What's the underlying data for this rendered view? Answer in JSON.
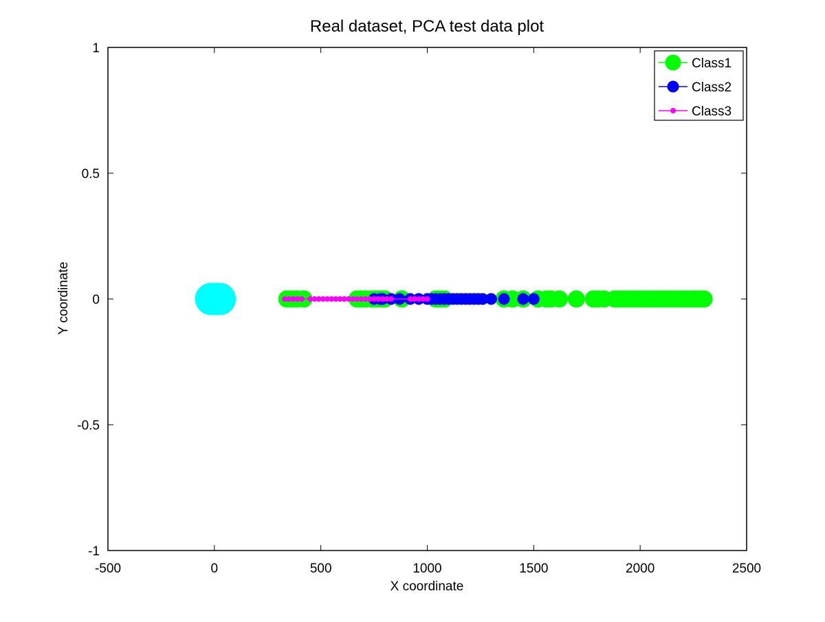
{
  "chart_data": {
    "type": "scatter",
    "title": "Real dataset, PCA test data plot",
    "xlabel": "X coordinate",
    "ylabel": "Y coordinate",
    "xlim": [
      -500,
      2500
    ],
    "ylim": [
      -1,
      1
    ],
    "xticks": [
      -500,
      0,
      500,
      1000,
      1500,
      2000,
      2500
    ],
    "yticks": [
      -1,
      -0.5,
      0,
      0.5,
      1
    ],
    "xtick_labels": [
      "-500",
      "0",
      "500",
      "1000",
      "1500",
      "2000",
      "2500"
    ],
    "ytick_labels": [
      "-1",
      "-0.5",
      "0",
      "0.5",
      "1"
    ],
    "grid": false,
    "legend_position": "top-right",
    "series": [
      {
        "name": "Class1",
        "color": "#00ff00",
        "marker": "large-circle",
        "x": [
          340,
          365,
          390,
          420,
          670,
          690,
          710,
          740,
          760,
          780,
          800,
          880,
          1040,
          1060,
          1080,
          1360,
          1400,
          1450,
          1520,
          1560,
          1580,
          1620,
          1700,
          1780,
          1800,
          1830,
          1880,
          1900,
          1920,
          1940,
          1960,
          1980,
          2000,
          2020,
          2040,
          2060,
          2080,
          2100,
          2120,
          2140,
          2160,
          2180,
          2200,
          2220,
          2240,
          2260,
          2280,
          2300
        ],
        "y": [
          0,
          0,
          0,
          0,
          0,
          0,
          0,
          0,
          0,
          0,
          0,
          0,
          0,
          0,
          0,
          0,
          0,
          0,
          0,
          0,
          0,
          0,
          0,
          0,
          0,
          0,
          0,
          0,
          0,
          0,
          0,
          0,
          0,
          0,
          0,
          0,
          0,
          0,
          0,
          0,
          0,
          0,
          0,
          0,
          0,
          0,
          0,
          0
        ]
      },
      {
        "name": "Class2",
        "color": "#0000ff",
        "marker": "medium-circle",
        "x": [
          750,
          780,
          790,
          830,
          870,
          920,
          960,
          1000,
          1020,
          1040,
          1060,
          1080,
          1100,
          1120,
          1140,
          1160,
          1180,
          1200,
          1220,
          1240,
          1260,
          1300,
          1360,
          1450,
          1500
        ],
        "y": [
          0,
          0,
          0,
          0,
          0,
          0,
          0,
          0,
          0,
          0,
          0,
          0,
          0,
          0,
          0,
          0,
          0,
          0,
          0,
          0,
          0,
          0,
          0,
          0,
          0
        ]
      },
      {
        "name": "Class3",
        "color": "#ff00ff",
        "marker": "small-dot-line",
        "x": [
          330,
          350,
          370,
          390,
          410,
          450,
          470,
          490,
          510,
          530,
          550,
          570,
          590,
          610,
          630,
          650,
          670,
          690,
          710,
          730,
          750,
          770,
          790,
          810,
          830,
          920,
          940,
          960,
          980,
          1000
        ],
        "y": [
          0,
          0,
          0,
          0,
          0,
          0,
          0,
          0,
          0,
          0,
          0,
          0,
          0,
          0,
          0,
          0,
          0,
          0,
          0,
          0,
          0,
          0,
          0,
          0,
          0,
          0,
          0,
          0,
          0,
          0
        ]
      },
      {
        "color": "#00ffff",
        "marker": "huge-circle",
        "x": [
          -15,
          -5,
          5,
          15,
          25
        ],
        "y": [
          0,
          0,
          0,
          0,
          0
        ]
      }
    ]
  }
}
